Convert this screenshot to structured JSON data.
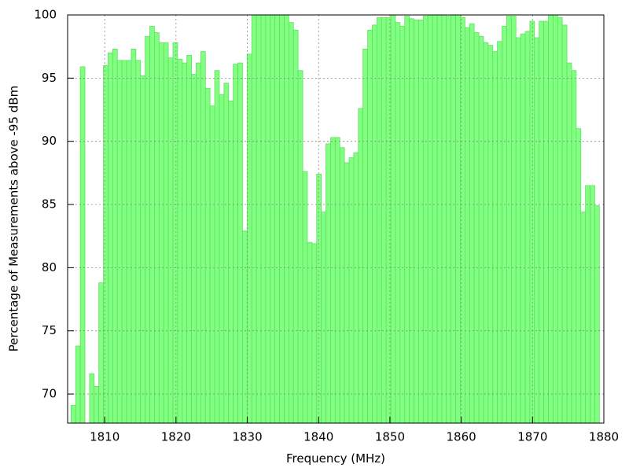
{
  "chart_data": {
    "type": "bar",
    "xlabel": "Frequency (MHz)",
    "ylabel": "Percentage of Measurements above -95 dBm",
    "x": [
      1805.6,
      1806.25,
      1806.9,
      1807.55,
      1808.2,
      1808.85,
      1809.5,
      1810.15,
      1810.8,
      1811.45,
      1812.1,
      1812.75,
      1813.4,
      1814.05,
      1814.7,
      1815.35,
      1816.0,
      1816.65,
      1817.3,
      1817.95,
      1818.6,
      1819.25,
      1819.9,
      1820.55,
      1821.2,
      1821.85,
      1822.5,
      1823.15,
      1823.8,
      1824.45,
      1825.1,
      1825.75,
      1826.4,
      1827.05,
      1827.7,
      1828.35,
      1829.0,
      1829.65,
      1830.3,
      1830.95,
      1831.6,
      1832.25,
      1832.9,
      1833.55,
      1834.2,
      1834.85,
      1835.5,
      1836.15,
      1836.8,
      1837.45,
      1838.1,
      1838.75,
      1839.4,
      1840.05,
      1840.7,
      1841.35,
      1842.0,
      1842.65,
      1843.3,
      1843.95,
      1844.6,
      1845.25,
      1845.9,
      1846.55,
      1847.2,
      1847.85,
      1848.5,
      1849.15,
      1849.8,
      1850.45,
      1851.1,
      1851.75,
      1852.4,
      1853.05,
      1853.7,
      1854.35,
      1855.0,
      1855.65,
      1856.3,
      1856.95,
      1857.6,
      1858.25,
      1858.9,
      1859.55,
      1860.2,
      1860.85,
      1861.5,
      1862.15,
      1862.8,
      1863.45,
      1864.1,
      1864.75,
      1865.4,
      1866.05,
      1866.7,
      1867.35,
      1868.0,
      1868.65,
      1869.3,
      1869.95,
      1870.6,
      1871.25,
      1871.9,
      1872.55,
      1873.2,
      1873.85,
      1874.5,
      1875.15,
      1875.8,
      1876.45,
      1877.1,
      1877.75,
      1878.4,
      1879.05
    ],
    "values": [
      69.1,
      73.8,
      95.9,
      null,
      71.6,
      70.6,
      78.8,
      96.0,
      97.0,
      97.3,
      96.4,
      96.4,
      96.4,
      97.3,
      96.4,
      95.2,
      98.3,
      99.1,
      98.6,
      97.8,
      97.8,
      96.6,
      97.8,
      96.5,
      96.2,
      96.8,
      95.3,
      96.2,
      97.1,
      94.2,
      92.8,
      95.6,
      93.7,
      94.6,
      93.2,
      96.1,
      96.2,
      82.9,
      96.9,
      100,
      100,
      100,
      100,
      100,
      100,
      100,
      100,
      99.4,
      98.8,
      95.6,
      87.6,
      82.0,
      81.9,
      87.4,
      84.4,
      89.8,
      90.3,
      90.3,
      89.5,
      88.3,
      88.7,
      89.1,
      92.6,
      97.3,
      98.8,
      99.2,
      99.8,
      99.8,
      99.8,
      100,
      99.4,
      99.1,
      99.9,
      99.7,
      99.6,
      99.6,
      99.9,
      100,
      100,
      100,
      100,
      99.9,
      100,
      100,
      99.8,
      99.0,
      99.3,
      98.6,
      98.3,
      97.8,
      97.6,
      97.1,
      97.9,
      99.1,
      99.9,
      99.9,
      98.2,
      98.5,
      98.7,
      99.5,
      98.2,
      99.5,
      99.5,
      100,
      100,
      99.8,
      99.2,
      96.2,
      95.6,
      91.0,
      84.4,
      86.5,
      86.5,
      84.9
    ],
    "bar_width": 0.65,
    "color": "#80ff80",
    "xlim": [
      1804.8,
      1880
    ],
    "xticks": [
      1810,
      1820,
      1830,
      1840,
      1850,
      1860,
      1870,
      1880
    ],
    "ylim": [
      67.7,
      100
    ],
    "yticks": [
      70,
      75,
      80,
      85,
      90,
      95,
      100
    ],
    "grid": true
  }
}
